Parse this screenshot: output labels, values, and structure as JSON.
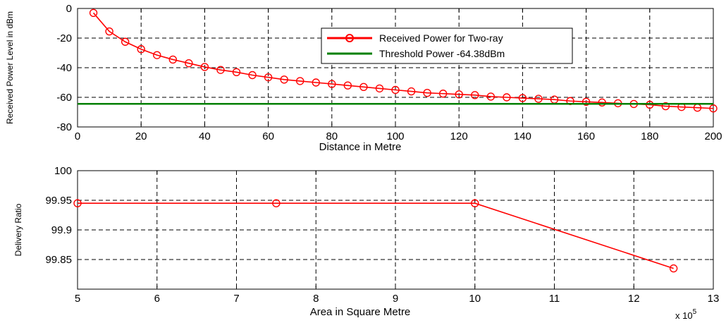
{
  "chart_data": [
    {
      "type": "line",
      "title": "",
      "xlabel": "Distance in Metre",
      "ylabel": "Received Power Level in dBm",
      "xlim": [
        0,
        200
      ],
      "ylim": [
        -80,
        0
      ],
      "xticks": [
        0,
        20,
        40,
        60,
        80,
        100,
        120,
        140,
        160,
        180,
        200
      ],
      "yticks": [
        -80,
        -60,
        -40,
        -20,
        0
      ],
      "grid": true,
      "legend_position": "top-right",
      "series": [
        {
          "name": "Received Power for Two-ray",
          "color": "#ff0000",
          "marker": "circle",
          "x": [
            5,
            10,
            15,
            20,
            25,
            30,
            35,
            40,
            45,
            50,
            55,
            60,
            65,
            70,
            75,
            80,
            85,
            90,
            95,
            100,
            105,
            110,
            115,
            120,
            125,
            130,
            135,
            140,
            145,
            150,
            155,
            160,
            165,
            170,
            175,
            180,
            185,
            190,
            195,
            200
          ],
          "y": [
            -3,
            -15.5,
            -22.5,
            -27.5,
            -31.5,
            -34.5,
            -37,
            -39.5,
            -41.5,
            -43,
            -45,
            -46.5,
            -48,
            -49,
            -50,
            -51,
            -52,
            -53,
            -54,
            -55,
            -56,
            -57,
            -57.5,
            -58,
            -58.5,
            -59.5,
            -60,
            -60.5,
            -61,
            -61.5,
            -62.5,
            -63,
            -63.5,
            -64,
            -64.5,
            -65,
            -66,
            -66.5,
            -67,
            -67.5
          ]
        },
        {
          "name": "Threshold Power -64.38dBm",
          "color": "#008000",
          "marker": "none",
          "x": [
            0,
            200
          ],
          "y": [
            -64.38,
            -64.38
          ]
        }
      ]
    },
    {
      "type": "line",
      "title": "",
      "xlabel": "Area in Square Metre",
      "ylabel": "Delivery Ratio",
      "x_multiplier_label": "x 10",
      "x_multiplier_exponent": "5",
      "xlim": [
        5,
        13
      ],
      "ylim": [
        99.8,
        100
      ],
      "xticks": [
        5,
        6,
        7,
        8,
        9,
        10,
        11,
        12,
        13
      ],
      "yticks": [
        99.85,
        99.9,
        99.95,
        100
      ],
      "grid": true,
      "series": [
        {
          "color": "#ff0000",
          "marker": "circle",
          "x": [
            5,
            7.5,
            10,
            12.5
          ],
          "y": [
            99.945,
            99.945,
            99.945,
            99.835
          ]
        }
      ]
    }
  ]
}
